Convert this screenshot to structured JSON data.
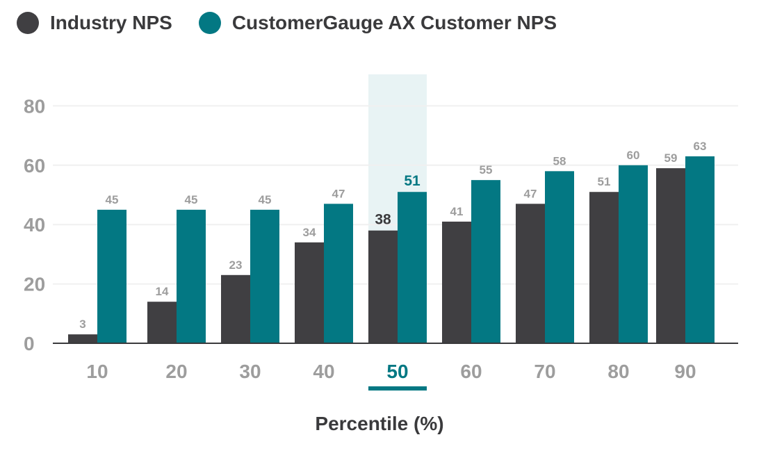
{
  "legend": {
    "items": [
      {
        "label": "Industry NPS",
        "color": "#403f42"
      },
      {
        "label": "CustomerGauge AX Customer NPS",
        "color": "#037883"
      }
    ]
  },
  "chart_data": {
    "type": "bar",
    "title": "",
    "xlabel": "Percentile (%)",
    "ylabel": "",
    "categories": [
      "10",
      "20",
      "30",
      "40",
      "50",
      "60",
      "70",
      "80",
      "90"
    ],
    "series": [
      {
        "name": "Industry NPS",
        "color": "#403f42",
        "values": [
          3,
          14,
          23,
          34,
          38,
          41,
          47,
          51,
          59
        ]
      },
      {
        "name": "CustomerGauge AX Customer NPS",
        "color": "#037883",
        "values": [
          45,
          45,
          45,
          47,
          51,
          55,
          58,
          60,
          63
        ]
      }
    ],
    "ylim": [
      0,
      85
    ],
    "yticks": [
      0,
      20,
      40,
      60,
      80
    ],
    "grid": true,
    "legend_position": "top-left",
    "highlight_category": "50",
    "colors": {
      "axis_text": "#9d9d9d",
      "value_label": "#9d9d9d",
      "highlight_band": "#e8f3f4",
      "highlight_accent": "#037883",
      "highlight_dark": "#3a3a3c",
      "grid": "#f0f0f0",
      "baseline": "#3a3a3c"
    }
  }
}
